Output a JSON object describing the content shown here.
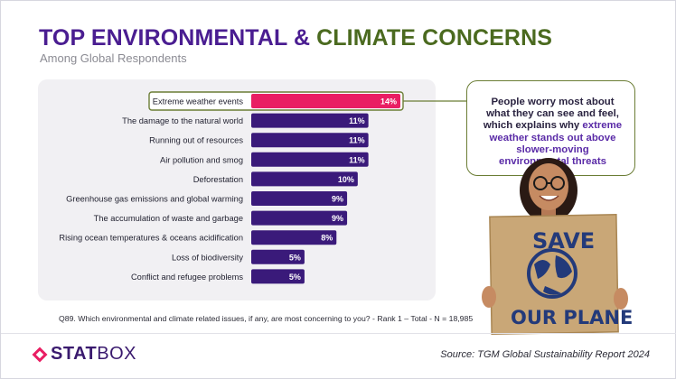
{
  "title_part1": "TOP ENVIRONMENTAL",
  "title_amp": "&",
  "title_part2": "CLIMATE CONCERNS",
  "subtitle": "Among Global Respondents",
  "callout": {
    "text_before": "People worry most about what they can see and feel, which explains why ",
    "highlight": "extreme weather stands out above slower-moving environmental threats"
  },
  "question": "Q89. Which environmental and climate related issues, if any, are most concerning to you? - Rank 1 – Total - N = 18,985",
  "source": "Source: TGM Global Sustainability Report 2024",
  "logo": {
    "part1": "STAT",
    "part2": "BOX"
  },
  "sign": {
    "line1": "SAVE",
    "line2": "OUR PLANET"
  },
  "colors": {
    "bar": "#3a1a7a",
    "highlight_bar": "#e91e63",
    "title_purple": "#4a1d91",
    "title_green": "#4b6a1f"
  },
  "chart_data": {
    "type": "bar",
    "orientation": "horizontal",
    "categories": [
      "Extreme weather events",
      "The damage to the natural world",
      "Running out of resources",
      "Air pollution and smog",
      "Deforestation",
      "Greenhouse gas emissions and global warming",
      "The accumulation of waste and garbage",
      "Rising ocean temperatures & oceans acidification",
      "Loss of biodiversity",
      "Conflict and refugee problems"
    ],
    "values": [
      14,
      11,
      11,
      11,
      10,
      9,
      9,
      8,
      5,
      5
    ],
    "labels": [
      "14%",
      "11%",
      "11%",
      "11%",
      "10%",
      "9%",
      "9%",
      "8%",
      "5%",
      "5%"
    ],
    "unit": "%",
    "highlighted_index": 0,
    "xlim": [
      0,
      14
    ],
    "grid": false,
    "legend": "none"
  }
}
